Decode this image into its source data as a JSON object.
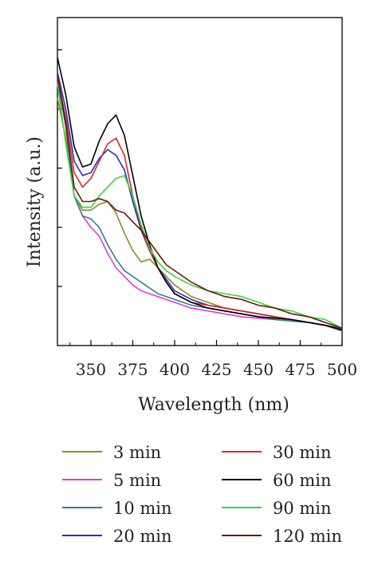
{
  "chart_data": {
    "type": "line",
    "xlabel": "Wavelength (nm)",
    "ylabel": "Intensity (a.u.)",
    "xlim": [
      330,
      500
    ],
    "ylim": [
      0,
      1.0
    ],
    "x_ticks": [
      350,
      375,
      400,
      425,
      450,
      475,
      500
    ],
    "y_tick_labels": false,
    "grid": false,
    "legend_placement": "bottom",
    "x": [
      330,
      335,
      340,
      345,
      350,
      355,
      360,
      365,
      370,
      375,
      380,
      385,
      390,
      395,
      400,
      410,
      420,
      430,
      440,
      450,
      460,
      470,
      480,
      490,
      500
    ],
    "series": [
      {
        "name": "3 min",
        "color": "#8a8a2e",
        "values": [
          0.86,
          0.72,
          0.52,
          0.47,
          0.47,
          0.49,
          0.5,
          0.46,
          0.39,
          0.33,
          0.29,
          0.3,
          0.27,
          0.24,
          0.21,
          0.17,
          0.15,
          0.13,
          0.12,
          0.11,
          0.1,
          0.09,
          0.08,
          0.07,
          0.06
        ]
      },
      {
        "name": "5 min",
        "color": "#e23ad6",
        "values": [
          0.94,
          0.78,
          0.52,
          0.45,
          0.41,
          0.38,
          0.32,
          0.27,
          0.24,
          0.21,
          0.19,
          0.18,
          0.17,
          0.16,
          0.15,
          0.13,
          0.12,
          0.11,
          0.1,
          0.095,
          0.09,
          0.085,
          0.08,
          0.07,
          0.05
        ]
      },
      {
        "name": "10 min",
        "color": "#2e7f8c",
        "values": [
          0.92,
          0.76,
          0.52,
          0.45,
          0.44,
          0.41,
          0.35,
          0.3,
          0.26,
          0.24,
          0.22,
          0.2,
          0.18,
          0.17,
          0.16,
          0.14,
          0.13,
          0.12,
          0.11,
          0.1,
          0.09,
          0.085,
          0.08,
          0.07,
          0.05
        ]
      },
      {
        "name": "20 min",
        "color": "#2b2bbf",
        "values": [
          0.95,
          0.82,
          0.64,
          0.59,
          0.6,
          0.65,
          0.68,
          0.66,
          0.61,
          0.5,
          0.4,
          0.33,
          0.27,
          0.23,
          0.19,
          0.16,
          0.14,
          0.13,
          0.12,
          0.11,
          0.1,
          0.09,
          0.08,
          0.07,
          0.055
        ]
      },
      {
        "name": "30 min",
        "color": "#d62828",
        "values": [
          0.93,
          0.79,
          0.6,
          0.55,
          0.58,
          0.64,
          0.7,
          0.72,
          0.66,
          0.52,
          0.41,
          0.33,
          0.27,
          0.22,
          0.18,
          0.15,
          0.14,
          0.13,
          0.12,
          0.11,
          0.1,
          0.09,
          0.08,
          0.07,
          0.055
        ]
      },
      {
        "name": "60 min",
        "color": "#000000",
        "values": [
          1.0,
          0.87,
          0.69,
          0.62,
          0.63,
          0.71,
          0.77,
          0.8,
          0.73,
          0.59,
          0.45,
          0.35,
          0.27,
          0.22,
          0.18,
          0.15,
          0.13,
          0.12,
          0.11,
          0.1,
          0.095,
          0.09,
          0.08,
          0.07,
          0.055
        ]
      },
      {
        "name": "90 min",
        "color": "#3ad63a",
        "values": [
          0.91,
          0.7,
          0.52,
          0.48,
          0.48,
          0.52,
          0.55,
          0.58,
          0.59,
          0.52,
          0.42,
          0.34,
          0.29,
          0.26,
          0.24,
          0.21,
          0.19,
          0.18,
          0.17,
          0.15,
          0.13,
          0.12,
          0.1,
          0.09,
          0.06
        ]
      },
      {
        "name": "120 min",
        "color": "#6e1414",
        "values": [
          0.94,
          0.77,
          0.55,
          0.5,
          0.5,
          0.51,
          0.5,
          0.47,
          0.46,
          0.43,
          0.4,
          0.36,
          0.32,
          0.28,
          0.26,
          0.22,
          0.19,
          0.17,
          0.16,
          0.14,
          0.13,
          0.11,
          0.1,
          0.08,
          0.06
        ]
      }
    ]
  }
}
